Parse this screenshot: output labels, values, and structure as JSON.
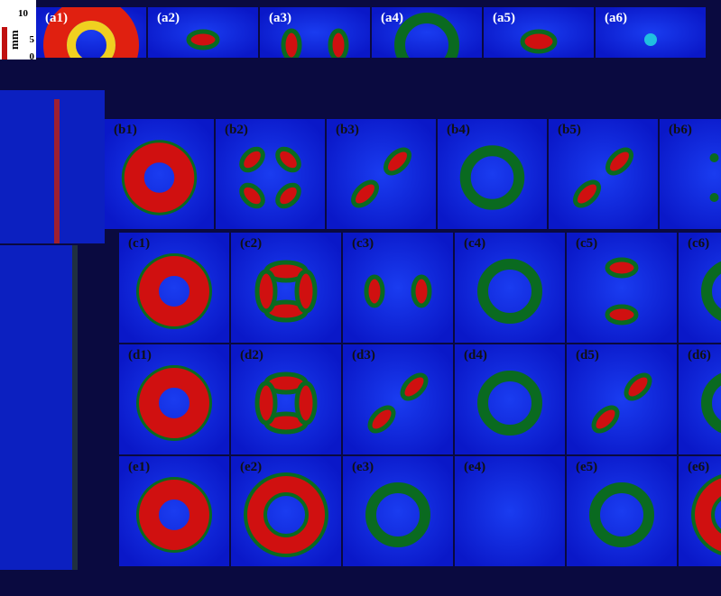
{
  "axis": {
    "ticks": [
      "10",
      "5",
      "0"
    ],
    "unit": "mm"
  },
  "panels": {
    "rows": [
      [
        "(a1)",
        "(a2)",
        "(a3)",
        "(a4)",
        "(a5)",
        "(a6)"
      ],
      [
        "(b1)",
        "(b2)",
        "(b3)",
        "(b4)",
        "(b5)",
        "(b6)"
      ],
      [
        "(c1)",
        "(c2)",
        "(c3)",
        "(c4)",
        "(c5)",
        "(c6)"
      ],
      [
        "(d1)",
        "(d2)",
        "(d3)",
        "(d4)",
        "(d5)",
        "(d6)"
      ],
      [
        "(e1)",
        "(e2)",
        "(e3)",
        "(e4)",
        "(e5)",
        "(e6)"
      ]
    ]
  }
}
